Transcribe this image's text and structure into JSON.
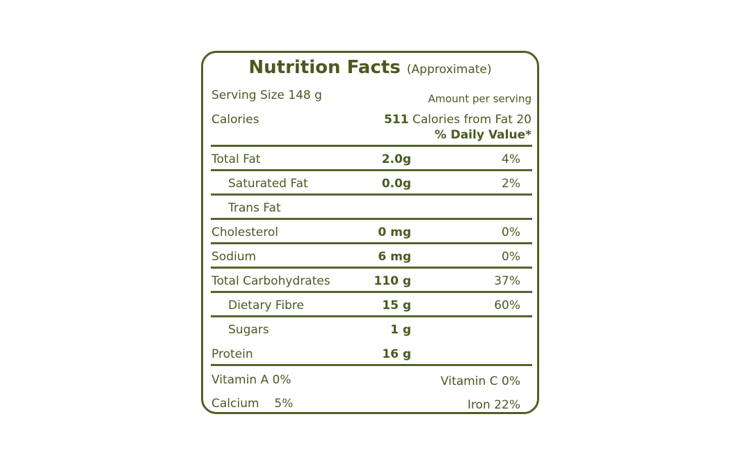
{
  "title": {
    "main": "Nutrition Facts",
    "sub": "(Approximate)"
  },
  "header": {
    "serving_size": "Serving Size 148 g",
    "amount_per_serving": "Amount per serving",
    "calories_label": "Calories",
    "calories_value": "511",
    "calories_from_fat": "Calories from Fat 20",
    "daily_value_heading": "% Daily Value*"
  },
  "nutrients": [
    {
      "label": "Total Fat",
      "amount": "2.0g",
      "dv": "4%",
      "indent": false
    },
    {
      "label": "Saturated Fat",
      "amount": "0.0g",
      "dv": "2%",
      "indent": true
    },
    {
      "label": "Trans Fat",
      "amount": "",
      "dv": "",
      "indent": true
    },
    {
      "label": "Cholesterol",
      "amount": "0 mg",
      "dv": "0%",
      "indent": false
    },
    {
      "label": "Sodium",
      "amount": "6 mg",
      "dv": "0%",
      "indent": false
    },
    {
      "label": "Total Carbohydrates",
      "amount": "110 g",
      "dv": "37%",
      "indent": false
    },
    {
      "label": "Dietary Fibre",
      "amount": "15 g",
      "dv": "60%",
      "indent": true
    },
    {
      "label": "Sugars",
      "amount": "1 g",
      "dv": "",
      "indent": true
    },
    {
      "label": "Protein",
      "amount": "16 g",
      "dv": "",
      "indent": false
    }
  ],
  "vitamins": {
    "vitamin_a": "Vitamin A 0%",
    "vitamin_c": "Vitamin C 0%",
    "calcium_label": "Calcium",
    "calcium_value": "5%",
    "iron": "Iron 22%"
  },
  "colors": {
    "text": "#4a5a22",
    "border": "#4f5f26"
  }
}
